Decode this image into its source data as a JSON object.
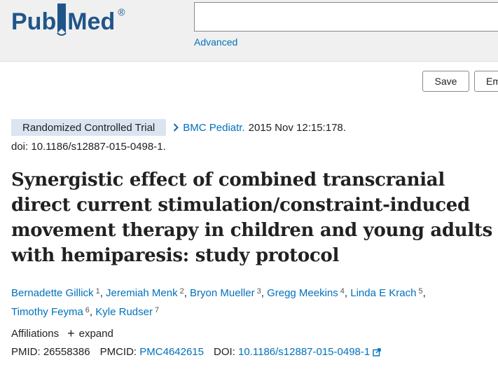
{
  "header": {
    "logo_text_left": "Pub",
    "logo_text_right": "Med",
    "logo_registered": "®",
    "search_placeholder": "",
    "advanced_label": "Advanced"
  },
  "actions": {
    "save_label": "Save",
    "email_label": "Em"
  },
  "article": {
    "publication_type": "Randomized Controlled Trial",
    "journal": "BMC Pediatr.",
    "citation": "2015 Nov 12:15:178.",
    "doi_line": "doi: 10.1186/s12887-015-0498-1.",
    "title": "Synergistic effect of combined transcranial direct current stimulation/constraint-induced movement therapy in children and young adults with hemiparesis: study protocol",
    "authors": [
      {
        "name": "Bernadette Gillick",
        "aff": "1"
      },
      {
        "name": "Jeremiah Menk",
        "aff": "2"
      },
      {
        "name": "Bryon Mueller",
        "aff": "3"
      },
      {
        "name": "Gregg Meekins",
        "aff": "4"
      },
      {
        "name": "Linda E Krach",
        "aff": "5"
      },
      {
        "name": "Timothy Feyma",
        "aff": "6"
      },
      {
        "name": "Kyle Rudser",
        "aff": "7"
      }
    ],
    "affiliations_label": "Affiliations",
    "expand_label": "expand",
    "pmid_label": "PMID:",
    "pmid": "26558386",
    "pmcid_label": "PMCID:",
    "pmcid": "PMC4642615",
    "doi_label": "DOI:",
    "doi": "10.1186/s12887-015-0498-1"
  },
  "colors": {
    "brand": "#20558a",
    "link": "#0071bc",
    "badge_bg": "#dbe5f1"
  },
  "icons": {
    "logo_bookmark": "bookmark-icon",
    "journal_chevron": "chevron-right-icon",
    "expand": "plus-icon",
    "external": "external-link-icon"
  }
}
